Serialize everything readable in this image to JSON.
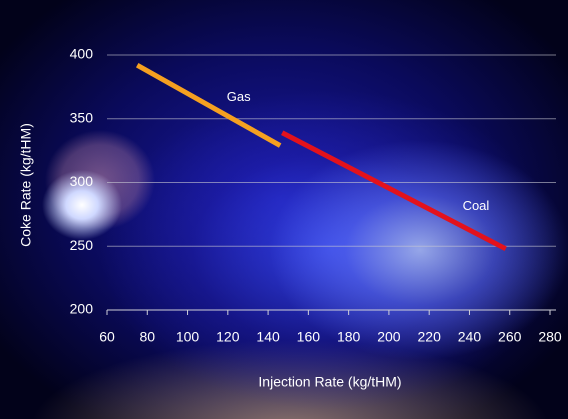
{
  "chart_data": {
    "type": "line",
    "x_label": "Injection Rate (kg/tHM)",
    "y_label": "Coke Rate (kg/tHM)",
    "series": [
      {
        "name": "Gas",
        "color": "#f5a020",
        "x": [
          75,
          146
        ],
        "values": [
          392,
          329
        ]
      },
      {
        "name": "Coal",
        "color": "#e3121c",
        "x": [
          147,
          258
        ],
        "values": [
          339,
          248
        ]
      }
    ],
    "xlim": [
      60,
      280
    ],
    "xticks": [
      60,
      80,
      100,
      120,
      140,
      160,
      180,
      200,
      220,
      240,
      260,
      280
    ],
    "ylim": [
      200,
      400
    ],
    "yticks": [
      200,
      250,
      300,
      350,
      400
    ],
    "grid": true
  }
}
